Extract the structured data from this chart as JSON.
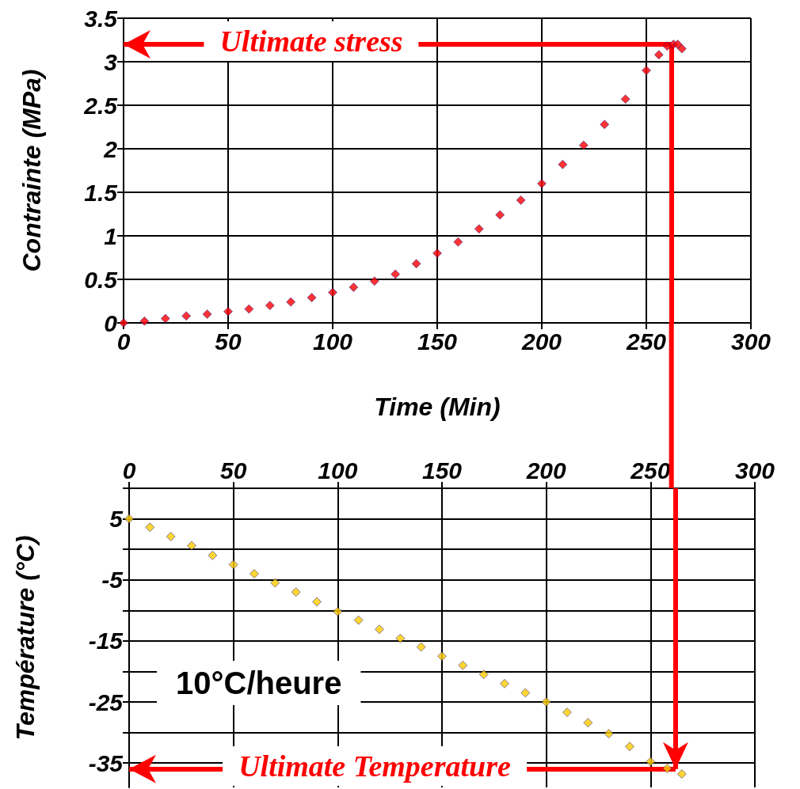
{
  "chart_data": [
    {
      "type": "scatter",
      "xlabel": "Time (Min)",
      "ylabel": "Contrainte (MPa)",
      "marker": "diamond",
      "grid": true,
      "xlim": [
        0,
        300
      ],
      "xticks": [
        0,
        50,
        100,
        150,
        200,
        250,
        300
      ],
      "ylim": [
        0,
        3.5
      ],
      "yticks": [
        0,
        0.5,
        1,
        1.5,
        2,
        2.5,
        3,
        3.5
      ],
      "annotations": [
        "Ultimate stress"
      ],
      "ref_lines": [
        {
          "axis": "y",
          "value": 3.2,
          "color": "#ff0000"
        },
        {
          "axis": "x",
          "value": 262,
          "color": "#ff0000"
        }
      ],
      "series": [
        {
          "color": "#ff0000",
          "x": [
            0,
            10,
            20,
            30,
            40,
            50,
            60,
            70,
            80,
            90,
            100,
            110,
            120,
            130,
            140,
            150,
            160,
            170,
            180,
            190,
            200,
            210,
            220,
            230,
            240,
            250,
            256,
            260,
            263,
            265,
            267
          ],
          "values": [
            0,
            0.02,
            0.05,
            0.08,
            0.1,
            0.13,
            0.16,
            0.2,
            0.24,
            0.29,
            0.35,
            0.41,
            0.48,
            0.56,
            0.68,
            0.8,
            0.93,
            1.08,
            1.24,
            1.41,
            1.6,
            1.82,
            2.04,
            2.28,
            2.57,
            2.9,
            3.08,
            3.18,
            3.2,
            3.2,
            3.15
          ]
        }
      ]
    },
    {
      "type": "scatter",
      "ylabel": "Température (°C)",
      "marker": "diamond",
      "grid": true,
      "xlim": [
        0,
        300
      ],
      "xticks": [
        0,
        50,
        100,
        150,
        200,
        250,
        300
      ],
      "ylim": [
        -39,
        10
      ],
      "yticks": [
        {
          "value": 10,
          "label": null
        },
        5,
        {
          "value": 0,
          "label": null
        },
        -5,
        {
          "value": -10,
          "label": null
        },
        -15,
        {
          "value": -20,
          "label": null
        },
        -25,
        {
          "value": -30,
          "label": null
        },
        -35
      ],
      "annotations": [
        "10°C/heure",
        "Ultimate Temperature"
      ],
      "ref_lines": [
        {
          "axis": "x",
          "value": 262,
          "color": "#ff0000"
        },
        {
          "axis": "y",
          "value": -36,
          "color": "#ff0000"
        }
      ],
      "series": [
        {
          "color": "#ffcc00",
          "x": [
            0,
            10,
            20,
            30,
            40,
            50,
            60,
            70,
            80,
            90,
            100,
            110,
            120,
            130,
            140,
            150,
            160,
            170,
            180,
            190,
            200,
            210,
            220,
            230,
            240,
            250,
            258,
            265
          ],
          "values": [
            5,
            3.6,
            2.1,
            0.6,
            -1,
            -2.5,
            -4,
            -5.5,
            -7,
            -8.6,
            -10.2,
            -11.6,
            -13.1,
            -14.6,
            -16,
            -17.5,
            -19,
            -20.5,
            -22,
            -23.5,
            -25,
            -26.7,
            -28.4,
            -30.2,
            -32.3,
            -34.8,
            -35.9,
            -36.8
          ]
        }
      ]
    }
  ]
}
